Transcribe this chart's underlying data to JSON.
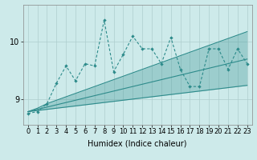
{
  "xlabel": "Humidex (Indice chaleur)",
  "x_values": [
    0,
    1,
    2,
    3,
    4,
    5,
    6,
    7,
    8,
    9,
    10,
    11,
    12,
    13,
    14,
    15,
    16,
    17,
    18,
    19,
    20,
    21,
    22,
    23
  ],
  "line1_y": [
    8.75,
    8.78,
    8.92,
    9.28,
    9.58,
    9.32,
    9.62,
    9.58,
    10.38,
    9.48,
    9.78,
    10.1,
    9.88,
    9.88,
    9.62,
    10.08,
    9.52,
    9.22,
    9.22,
    9.88,
    9.88,
    9.52,
    9.88,
    9.62
  ],
  "line2_y": [
    8.78,
    8.84,
    8.92,
    8.98,
    9.04,
    9.1,
    9.16,
    9.22,
    9.28,
    9.34,
    9.4,
    9.46,
    9.52,
    9.58,
    9.64,
    9.7,
    9.76,
    9.82,
    9.88,
    9.94,
    10.0,
    10.06,
    10.12,
    10.18
  ],
  "line3_y": [
    8.78,
    8.82,
    8.86,
    8.9,
    8.94,
    8.98,
    9.02,
    9.06,
    9.1,
    9.14,
    9.18,
    9.22,
    9.26,
    9.3,
    9.34,
    9.38,
    9.42,
    9.46,
    9.5,
    9.54,
    9.58,
    9.62,
    9.66,
    9.7
  ],
  "line4_y": [
    8.78,
    8.8,
    8.82,
    8.84,
    8.86,
    8.88,
    8.9,
    8.92,
    8.94,
    8.96,
    8.98,
    9.0,
    9.02,
    9.04,
    9.06,
    9.08,
    9.1,
    9.12,
    9.14,
    9.16,
    9.18,
    9.2,
    9.22,
    9.24
  ],
  "color_main": "#2d8b8b",
  "bg_color": "#cdeaea",
  "grid_color": "#aecece",
  "ylim": [
    8.55,
    10.65
  ],
  "yticks": [
    9,
    10
  ],
  "label_fontsize": 7,
  "tick_fontsize": 6
}
